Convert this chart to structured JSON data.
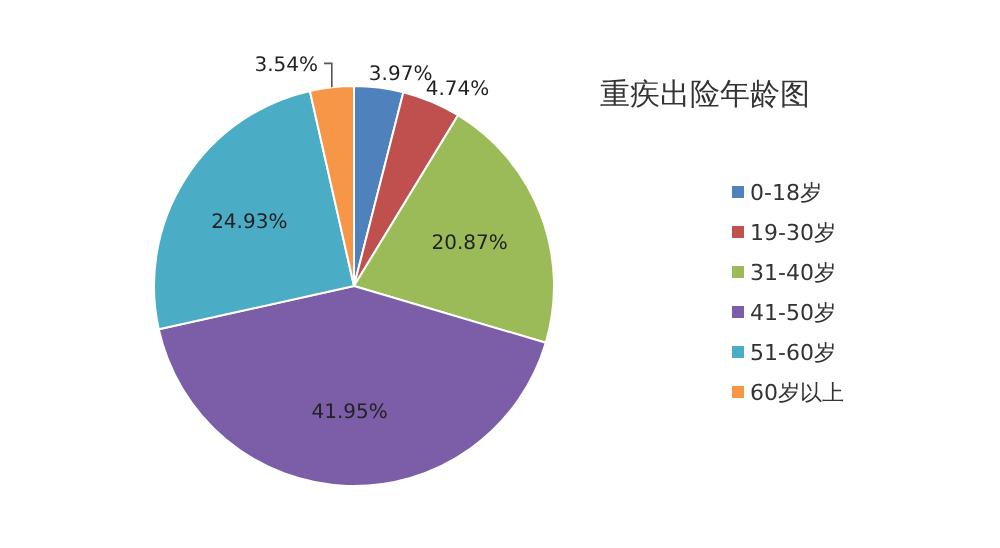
{
  "chart_data": {
    "type": "pie",
    "title": "重疾出险年龄图",
    "categories": [
      "0-18岁",
      "19-30岁",
      "31-40岁",
      "41-50岁",
      "51-60岁",
      "60岁以上"
    ],
    "values": [
      3.97,
      4.74,
      20.87,
      41.95,
      24.93,
      3.54
    ],
    "value_labels": [
      "3.97%",
      "4.74%",
      "20.87%",
      "41.95%",
      "24.93%",
      "3.54%"
    ],
    "colors": [
      "#4f81bd",
      "#c0504d",
      "#9bbb59",
      "#7b5ea7",
      "#4bacc6",
      "#f79646"
    ],
    "legend": "right"
  }
}
